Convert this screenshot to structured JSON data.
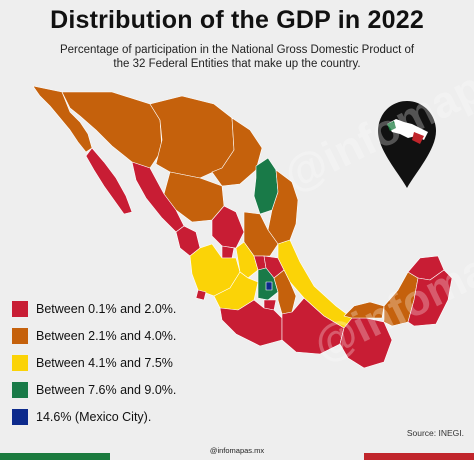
{
  "title": "Distribution of the GDP in 2022",
  "subtitle_line1": "Percentage of participation in the National Gross Domestic Product of",
  "subtitle_line2": "the 32 Federal Entities that make up the country.",
  "colors": {
    "range_1": "#c81d34",
    "range_2": "#c5610c",
    "range_3": "#fbd307",
    "range_4": "#197a48",
    "range_5": "#0d2a8c",
    "background": "#eeeeee"
  },
  "legend": [
    {
      "label": "Between 0.1% and 2.0%.",
      "color": "#c81d34"
    },
    {
      "label": "Between 2.1% and 4.0%.",
      "color": "#c5610c"
    },
    {
      "label": "Between 4.1% and 7.5%",
      "color": "#fbd307"
    },
    {
      "label": "Between 7.6% and 9.0%.",
      "color": "#197a48"
    },
    {
      "label": "14.6% (Mexico City).",
      "color": "#0d2a8c"
    }
  ],
  "source": "Source: INEGI.",
  "handle": "@infomapas.mx",
  "watermark": "@infomapas.mx",
  "icon": "map-pin-icon"
}
